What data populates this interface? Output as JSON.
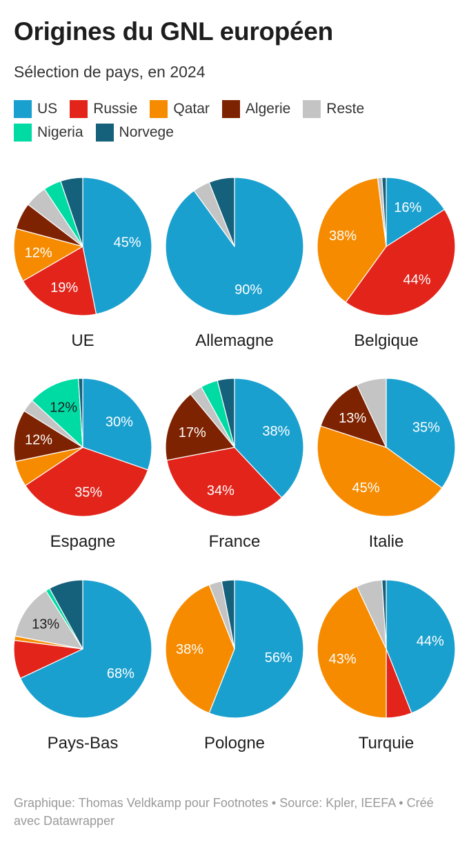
{
  "title": "Origines du GNL européen",
  "subtitle": "Sélection de pays, en 2024",
  "legend": [
    {
      "label": "US",
      "color": "#1aa0cf"
    },
    {
      "label": "Russie",
      "color": "#e2241b"
    },
    {
      "label": "Qatar",
      "color": "#f68b00"
    },
    {
      "label": "Algerie",
      "color": "#7e2301"
    },
    {
      "label": "Reste",
      "color": "#c4c4c4"
    },
    {
      "label": "Nigeria",
      "color": "#00dba4"
    },
    {
      "label": "Norvege",
      "color": "#15607a"
    }
  ],
  "footer": "Graphique: Thomas Veldkamp pour Footnotes • Source: Kpler, IEEFA • Créé avec Datawrapper",
  "chart_data": [
    {
      "type": "pie",
      "title": "UE",
      "series": [
        "US",
        "Russie",
        "Qatar",
        "Algerie",
        "Reste",
        "Nigeria",
        "Norvege"
      ],
      "values": [
        45,
        19,
        12,
        6,
        5,
        4,
        5
      ],
      "labels": [
        "45%",
        "19%",
        "12%",
        "",
        "",
        "",
        ""
      ]
    },
    {
      "type": "pie",
      "title": "Allemagne",
      "series": [
        "US",
        "Reste",
        "Norvege"
      ],
      "values": [
        90,
        4,
        6
      ],
      "labels": [
        "90%",
        "",
        ""
      ]
    },
    {
      "type": "pie",
      "title": "Belgique",
      "series": [
        "US",
        "Russie",
        "Qatar",
        "Reste",
        "Norvege"
      ],
      "values": [
        16,
        44,
        38,
        1,
        1
      ],
      "labels": [
        "16%",
        "44%",
        "38%",
        "",
        ""
      ]
    },
    {
      "type": "pie",
      "title": "Espagne",
      "series": [
        "US",
        "Russie",
        "Qatar",
        "Algerie",
        "Reste",
        "Nigeria",
        "Norvege"
      ],
      "values": [
        30,
        35,
        6,
        12,
        3,
        12,
        1
      ],
      "labels": [
        "30%",
        "35%",
        "",
        "12%",
        "",
        "12%",
        ""
      ]
    },
    {
      "type": "pie",
      "title": "France",
      "series": [
        "US",
        "Russie",
        "Algerie",
        "Reste",
        "Nigeria",
        "Norvege"
      ],
      "values": [
        38,
        34,
        17,
        3,
        4,
        4
      ],
      "labels": [
        "38%",
        "34%",
        "17%",
        "",
        "",
        ""
      ]
    },
    {
      "type": "pie",
      "title": "Italie",
      "series": [
        "US",
        "Qatar",
        "Algerie",
        "Reste"
      ],
      "values": [
        35,
        45,
        13,
        7
      ],
      "labels": [
        "35%",
        "45%",
        "13%",
        ""
      ]
    },
    {
      "type": "pie",
      "title": "Pays-Bas",
      "series": [
        "US",
        "Russie",
        "Qatar",
        "Reste",
        "Nigeria",
        "Norvege"
      ],
      "values": [
        68,
        9,
        1,
        13,
        1,
        8
      ],
      "labels": [
        "68%",
        "",
        "",
        "13%",
        "",
        ""
      ]
    },
    {
      "type": "pie",
      "title": "Pologne",
      "series": [
        "US",
        "Qatar",
        "Reste",
        "Norvege"
      ],
      "values": [
        56,
        38,
        3,
        3
      ],
      "labels": [
        "56%",
        "38%",
        "",
        ""
      ]
    },
    {
      "type": "pie",
      "title": "Turquie",
      "series": [
        "US",
        "Russie",
        "Qatar",
        "Reste",
        "Norvege"
      ],
      "values": [
        44,
        6,
        43,
        6,
        1
      ],
      "labels": [
        "44%",
        "",
        "43%",
        "",
        ""
      ]
    }
  ]
}
